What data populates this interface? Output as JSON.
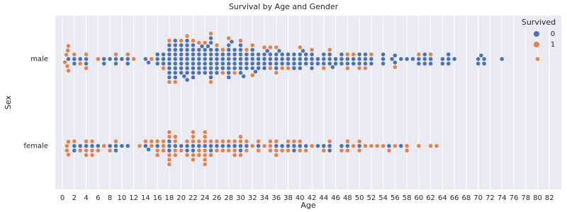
{
  "chart_data": {
    "type": "swarm",
    "title": "Survival by Age and Gender",
    "x_label": "Age",
    "y_label": "Sex",
    "categories": [
      "male",
      "female"
    ],
    "xlim": [
      -1.2,
      84
    ],
    "xticks": [
      0,
      2,
      4,
      6,
      8,
      10,
      12,
      14,
      16,
      18,
      20,
      22,
      24,
      26,
      28,
      30,
      32,
      34,
      36,
      38,
      40,
      42,
      44,
      46,
      48,
      50,
      52,
      54,
      56,
      58,
      60,
      62,
      64,
      66,
      68,
      70,
      72,
      74,
      76,
      78,
      80,
      82
    ],
    "grid": true,
    "legend_title": "Survived",
    "legend_position": "upper right",
    "series": [
      {
        "name": "0",
        "color": "#4c72b0",
        "values": [
          [
            1,
            2,
            2,
            3,
            4,
            4,
            7,
            7,
            8,
            9,
            9,
            10,
            11,
            11,
            14,
            14.5,
            16,
            16,
            16,
            17,
            17,
            17,
            18,
            18,
            18,
            18,
            18,
            18,
            18,
            18,
            19,
            19,
            19,
            19,
            19,
            19,
            19,
            19,
            19,
            20,
            20,
            20,
            20,
            20,
            20,
            20,
            20.5,
            21,
            21,
            21,
            21,
            21,
            21,
            21,
            21,
            21,
            22,
            22,
            22,
            22,
            22,
            22,
            22,
            22,
            23,
            23,
            23,
            23,
            23,
            23,
            23.5,
            24,
            24,
            24,
            24,
            24,
            24,
            24.5,
            25,
            25,
            25,
            25,
            25,
            25,
            25,
            25,
            25,
            26,
            26,
            26,
            26,
            26,
            26,
            27,
            27,
            27,
            27,
            28,
            28,
            28,
            28,
            28,
            28,
            28,
            28,
            28.5,
            29,
            29,
            29,
            29,
            29,
            30,
            30,
            30,
            30,
            30,
            30,
            30,
            30.5,
            31,
            31,
            31,
            31,
            32,
            32,
            32,
            32,
            32,
            32.5,
            33,
            33,
            33,
            33,
            34,
            34,
            34,
            34,
            34.5,
            35,
            35,
            35,
            36,
            36,
            36,
            36,
            36.5,
            37,
            37,
            37,
            38,
            38,
            38,
            39,
            39,
            39,
            39,
            40,
            40,
            40,
            40,
            40.5,
            41,
            41,
            41,
            42,
            42,
            42,
            42,
            43,
            43,
            44,
            44,
            44,
            45,
            45,
            45,
            45.5,
            46,
            46,
            47,
            47,
            47,
            48,
            48,
            49,
            49,
            50,
            50,
            50,
            51,
            51,
            51,
            52,
            52,
            54,
            54,
            54,
            55.5,
            56,
            56,
            57,
            58,
            59,
            60,
            60,
            61,
            61,
            61,
            62,
            62,
            64,
            64,
            65,
            65,
            65,
            66,
            70,
            70,
            70.5,
            71,
            71,
            74
          ],
          [
            2,
            2,
            3,
            4,
            5,
            6,
            8,
            9,
            9,
            10,
            11,
            14,
            14.5,
            16,
            18,
            18,
            18,
            19,
            20,
            21,
            21,
            22,
            22,
            23,
            24,
            25,
            25,
            26,
            27,
            28,
            29,
            30,
            30,
            31,
            33,
            36,
            37,
            38,
            39,
            39,
            40,
            41,
            43,
            44,
            45,
            45,
            47,
            48,
            50,
            55,
            57
          ]
        ]
      },
      {
        "name": "1",
        "color": "#dd8452",
        "values": [
          [
            0.42,
            0.67,
            0.83,
            0.92,
            1,
            1,
            2,
            3,
            4,
            4,
            6,
            9,
            11,
            12,
            15,
            17,
            18,
            18,
            19,
            20,
            21,
            22,
            23,
            24,
            25,
            25,
            26,
            27,
            27,
            28,
            29,
            30,
            31,
            32,
            32,
            34,
            35,
            35,
            36,
            36,
            37,
            38,
            40,
            42,
            44,
            45,
            48,
            48,
            49,
            50,
            51,
            52,
            56,
            60,
            62,
            80
          ],
          [
            0.75,
            0.75,
            1,
            1,
            2,
            3,
            4,
            4,
            4,
            5,
            5,
            5,
            6,
            7,
            8,
            9,
            13,
            14,
            15,
            15,
            16,
            16,
            16,
            17,
            17,
            17,
            18,
            18,
            18,
            18,
            18,
            19,
            19,
            19,
            19,
            20,
            21,
            21,
            22,
            22,
            22,
            22,
            22,
            23,
            23,
            23,
            24,
            24,
            24,
            24,
            24,
            24,
            24,
            25,
            25,
            26,
            26,
            27,
            27,
            28,
            28,
            29,
            29,
            29,
            30,
            30,
            30,
            31,
            31,
            32,
            33,
            33,
            34,
            35,
            35,
            35,
            36,
            36,
            36,
            37,
            38,
            38,
            39,
            40,
            40,
            41,
            42,
            44,
            45,
            47,
            48,
            48,
            49,
            50,
            50,
            51,
            52,
            53,
            54,
            55,
            56,
            58,
            58,
            60,
            62,
            63
          ]
        ]
      }
    ]
  }
}
